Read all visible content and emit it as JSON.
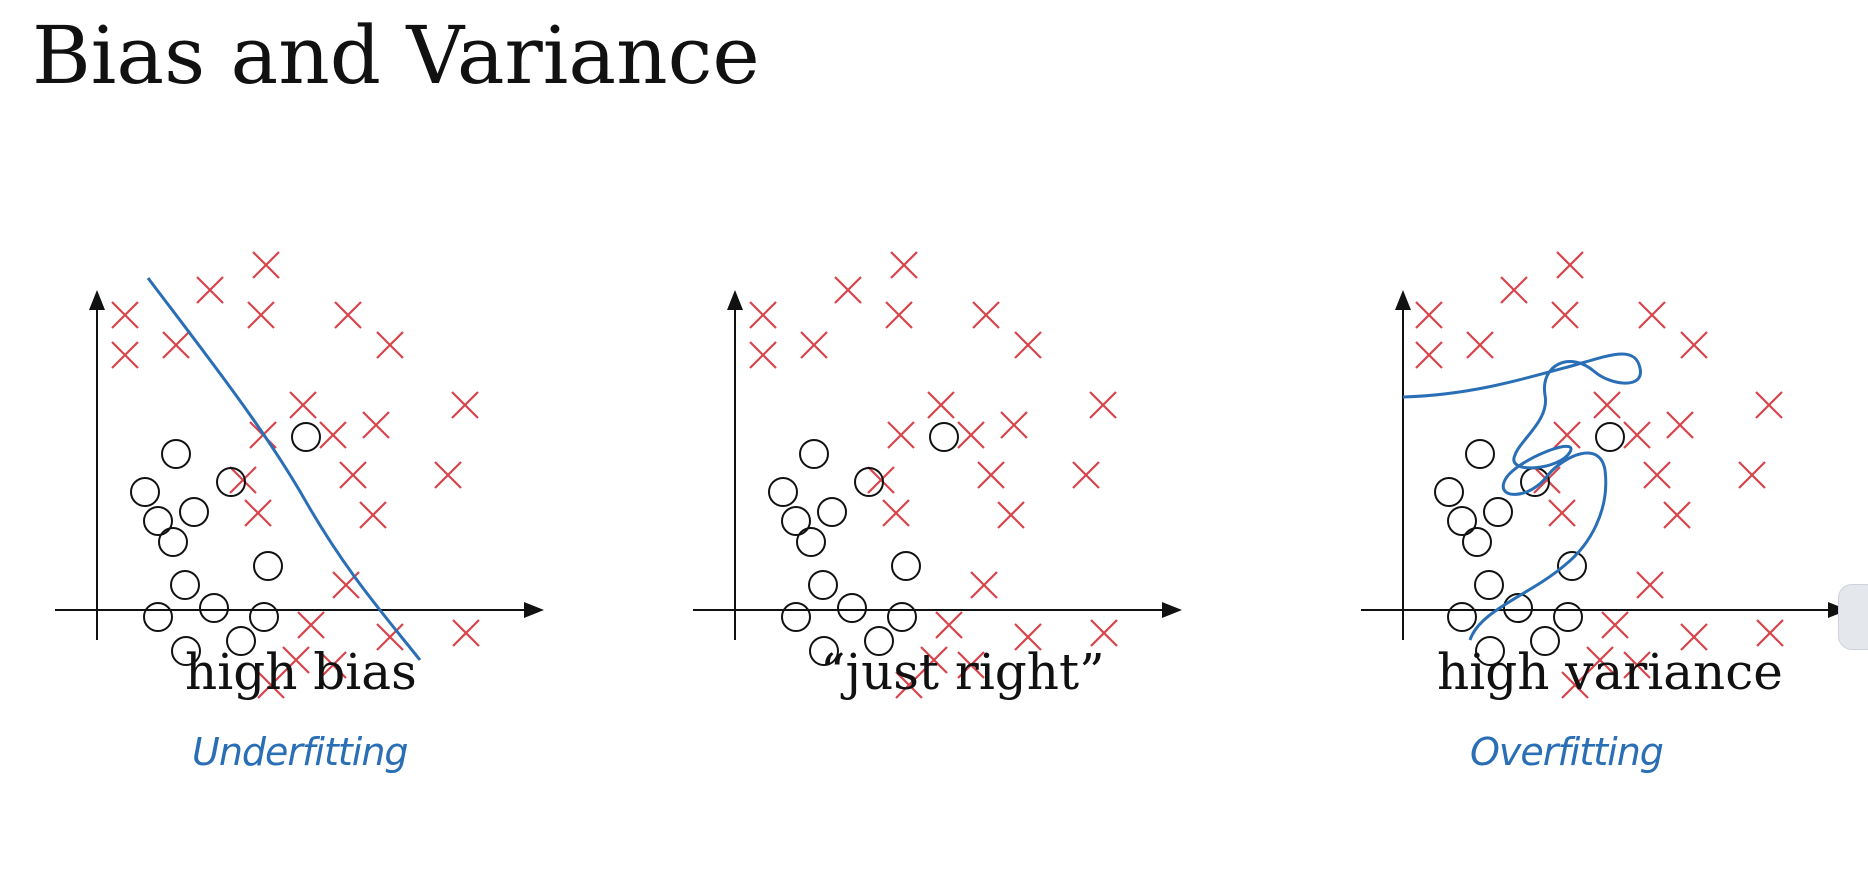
{
  "title": "Bias and Variance",
  "colors": {
    "cross": "#d9434a",
    "circle": "#111111",
    "boundary": "#2a6fb5",
    "axis": "#111111"
  },
  "panels": [
    {
      "id": "high-bias",
      "label": "high bias",
      "annotation": "Underfitting",
      "boundary": "straight diagonal line"
    },
    {
      "id": "just-right",
      "label": "“just right”",
      "annotation": "",
      "boundary": "none"
    },
    {
      "id": "high-variance",
      "label": "high variance",
      "annotation": "Overfitting",
      "boundary": "highly wiggly curve"
    }
  ],
  "legend": {
    "cross_icon": "x-mark-icon",
    "circle_icon": "circle-marker-icon"
  }
}
